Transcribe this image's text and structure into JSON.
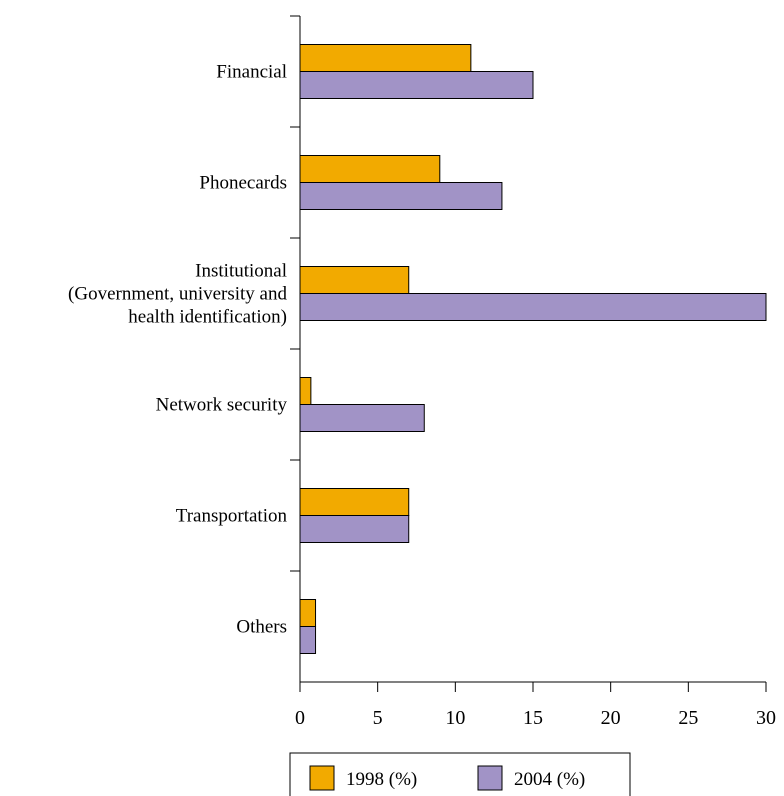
{
  "chart_data": {
    "type": "bar",
    "orientation": "horizontal",
    "categories": [
      [
        "Financial"
      ],
      [
        "Phonecards"
      ],
      [
        "Institutional",
        "(Government, university and",
        "health identification)"
      ],
      [
        "Network security"
      ],
      [
        "Transportation"
      ],
      [
        "Others"
      ]
    ],
    "series": [
      {
        "name": "1998 (%)",
        "color": "#F2AA00",
        "values": [
          11,
          9,
          7,
          0.7,
          7,
          1
        ]
      },
      {
        "name": "2004 (%)",
        "color": "#A193C6",
        "values": [
          15,
          13,
          30,
          8,
          7,
          1
        ]
      }
    ],
    "xlim": [
      0,
      30
    ],
    "xticks": [
      0,
      5,
      10,
      15,
      20,
      25,
      30
    ],
    "grid": false,
    "legend_position": "bottom"
  }
}
